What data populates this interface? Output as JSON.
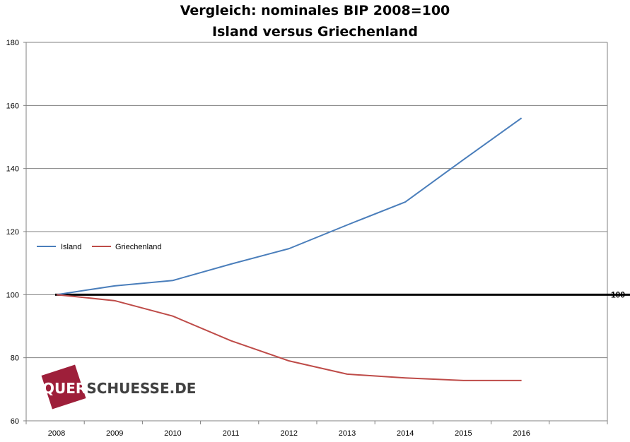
{
  "chart_data": {
    "type": "line",
    "title": "Vergleich: nominales BIP 2008=100",
    "subtitle": "Island versus Griechenland",
    "x": [
      "2008",
      "2009",
      "2010",
      "2011",
      "2012",
      "2013",
      "2014",
      "2015",
      "2016"
    ],
    "ylim": [
      60,
      180
    ],
    "yticks": [
      "60",
      "80",
      "100",
      "120",
      "140",
      "160",
      "180"
    ],
    "grid": true,
    "legend_placement": "middle-left",
    "series": [
      {
        "name": "Island",
        "color": "#4a7ebb",
        "values": [
          100,
          102.8,
          104.5,
          109.7,
          114.6,
          122.1,
          129.4,
          142.8,
          156
        ]
      },
      {
        "name": "Griechenland",
        "color": "#be4b48",
        "values": [
          100,
          98.1,
          93.2,
          85.4,
          79,
          74.8,
          73.6,
          72.8,
          72.8
        ]
      }
    ],
    "reference_line": {
      "value": 100,
      "label": "100",
      "color": "#000000"
    }
  },
  "watermark": {
    "text_prefix": "QUER",
    "text_suffix": "SCHUESSE.DE",
    "color": "#9e1f3a"
  }
}
